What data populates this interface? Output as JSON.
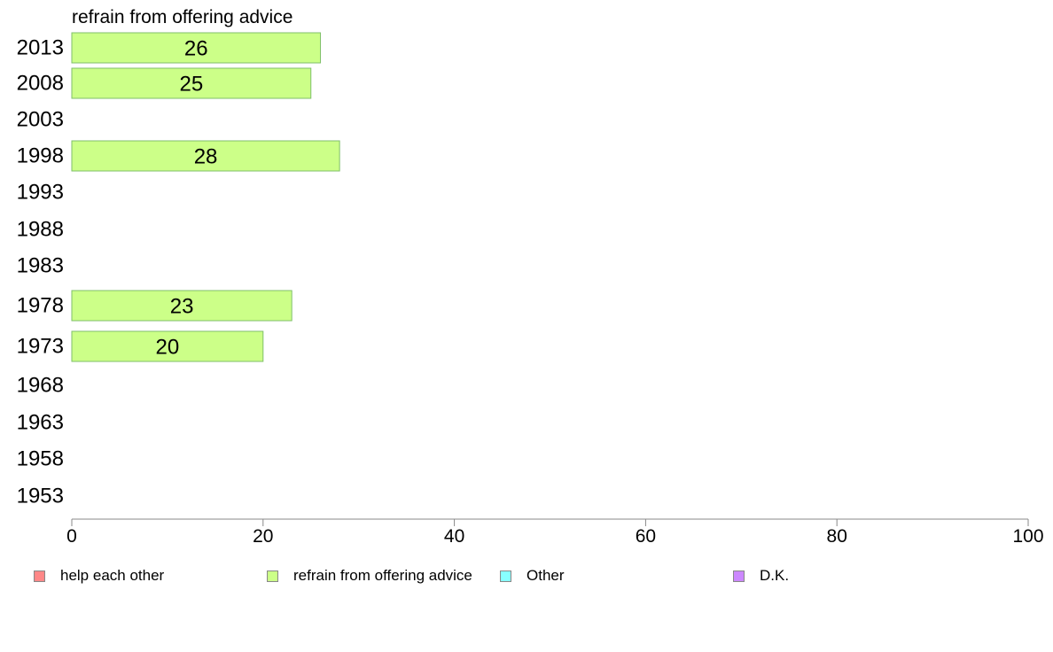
{
  "chart_data": {
    "type": "bar",
    "orientation": "horizontal",
    "title": "refrain from offering advice",
    "categories": [
      "2013",
      "2008",
      "2003",
      "1998",
      "1993",
      "1988",
      "1983",
      "1978",
      "1973",
      "1968",
      "1963",
      "1958",
      "1953"
    ],
    "series": [
      {
        "name": "refrain from offering advice",
        "color": "#ccff88",
        "values": [
          26,
          25,
          null,
          28,
          null,
          null,
          null,
          23,
          20,
          null,
          null,
          null,
          null
        ],
        "labels": [
          "26",
          "25",
          "",
          "28",
          "",
          "",
          "",
          "23",
          "20",
          "",
          "",
          "",
          ""
        ]
      }
    ],
    "xlim": [
      0,
      100
    ],
    "xticks": [
      "0",
      "20",
      "40",
      "60",
      "80",
      "100"
    ],
    "grid": false,
    "legend_position": "bottom",
    "legend": [
      {
        "label": "help each other",
        "color": "#ff8888"
      },
      {
        "label": "refrain from offering advice",
        "color": "#ccff88"
      },
      {
        "label": "Other",
        "color": "#88ffff"
      },
      {
        "label": "D.K.",
        "color": "#cc88ff"
      }
    ]
  }
}
